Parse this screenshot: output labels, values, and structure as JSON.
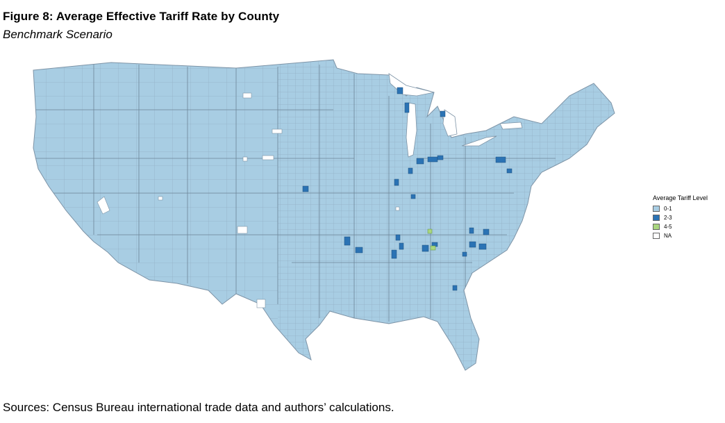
{
  "title": "Figure 8: Average Effective Tariff Rate by County",
  "subtitle": "Benchmark Scenario",
  "sources": "Sources: Census Bureau international trade data and authors’ calculations.",
  "legend": {
    "title": "Average Tariff Level",
    "items": [
      {
        "label": "0-1",
        "color": "#a8cde3"
      },
      {
        "label": "2-3",
        "color": "#2b73b4"
      },
      {
        "label": "4-5",
        "color": "#a9d67f"
      },
      {
        "label": "NA",
        "color": "#ffffff"
      }
    ]
  },
  "colors": {
    "base": "#a8cde3",
    "border": "#7d93a6",
    "high": "#2b73b4",
    "highest": "#a9d67f",
    "na": "#ffffff"
  }
}
